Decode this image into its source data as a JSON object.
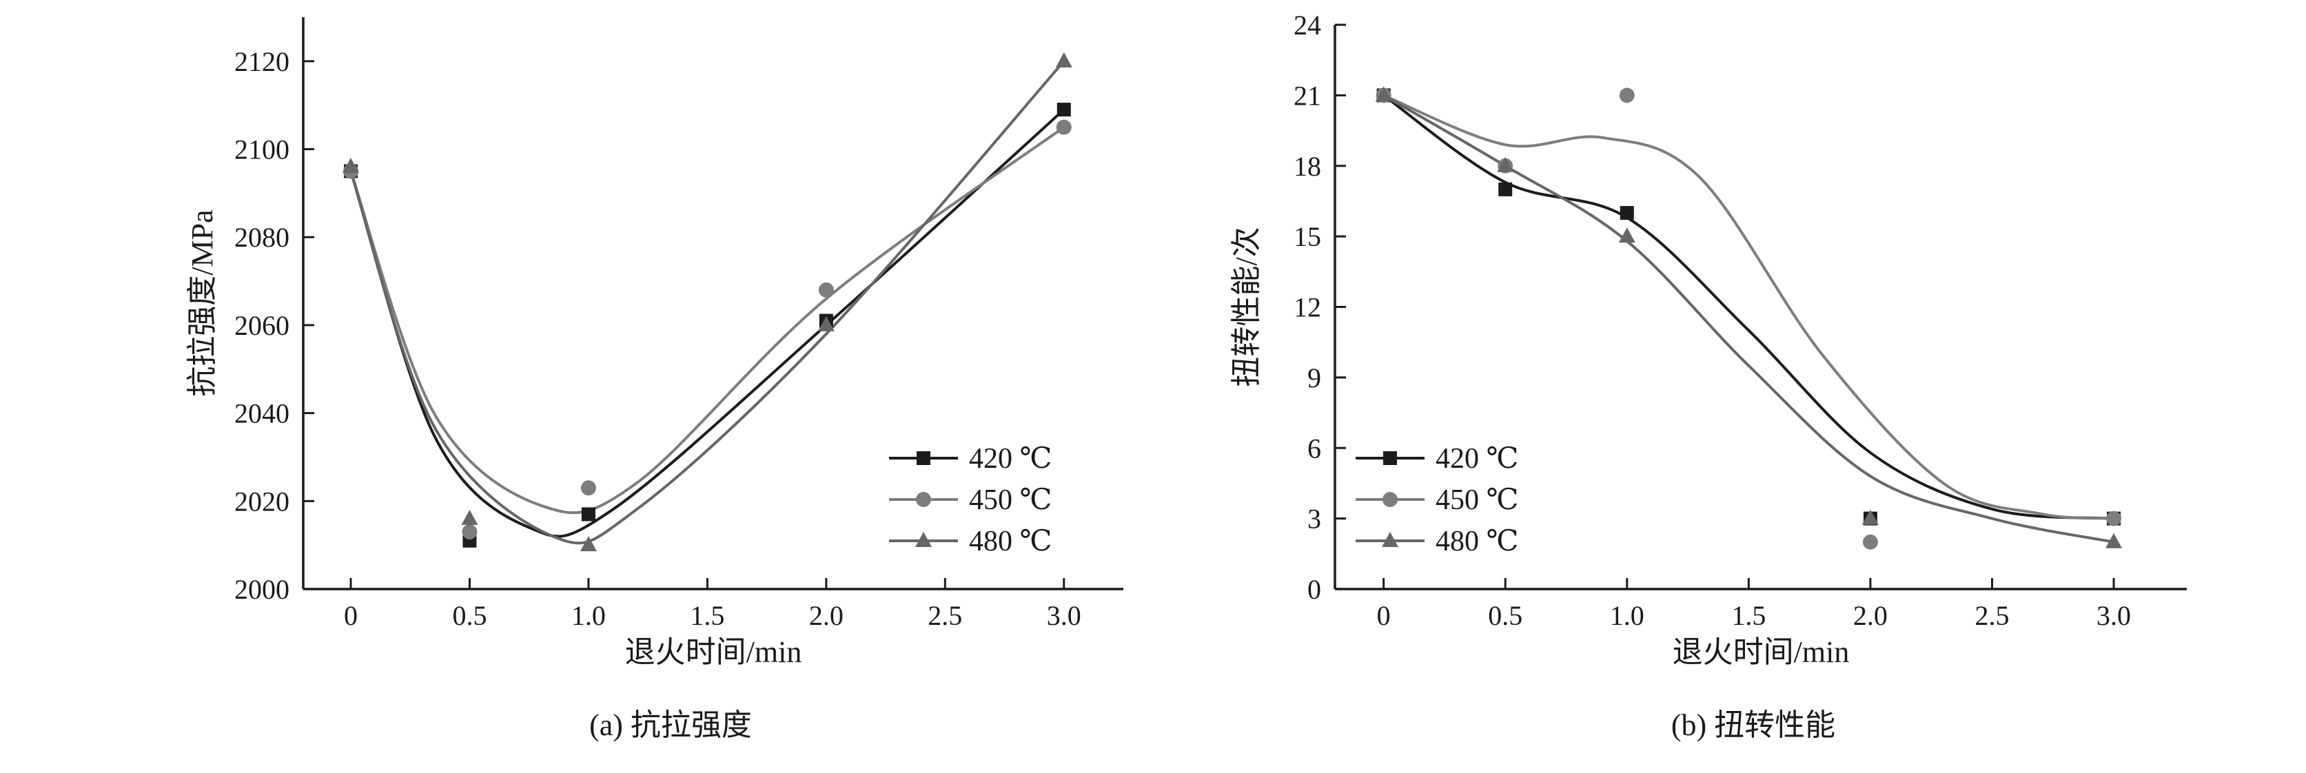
{
  "page": {
    "background": "#ffffff",
    "text_color": "#1a1a1a"
  },
  "chart_data": [
    {
      "type": "line",
      "caption": "(a) 抗拉强度",
      "xlabel": "退火时间/min",
      "ylabel": "抗拉强度/MPa",
      "xlim": [
        -0.2,
        3.25
      ],
      "ylim": [
        2000,
        2130
      ],
      "grid": false,
      "legend_position": "bottom-right",
      "x_ticks": [
        {
          "v": 0,
          "label": "0"
        },
        {
          "v": 0.5,
          "label": "0.5"
        },
        {
          "v": 1,
          "label": "1.0"
        },
        {
          "v": 1.5,
          "label": "1.5"
        },
        {
          "v": 2,
          "label": "2.0"
        },
        {
          "v": 2.5,
          "label": "2.5"
        },
        {
          "v": 3,
          "label": "3.0"
        }
      ],
      "y_ticks": [
        {
          "v": 2000,
          "label": "2000"
        },
        {
          "v": 2020,
          "label": "2020"
        },
        {
          "v": 2040,
          "label": "2040"
        },
        {
          "v": 2060,
          "label": "2060"
        },
        {
          "v": 2080,
          "label": "2080"
        },
        {
          "v": 2100,
          "label": "2100"
        },
        {
          "v": 2120,
          "label": "2120"
        }
      ],
      "series": [
        {
          "name": "420 ℃",
          "marker": "square",
          "color": "#1c1c1c",
          "points": [
            [
              0,
              2095
            ],
            [
              0.5,
              2011
            ],
            [
              1,
              2017
            ],
            [
              2,
              2061
            ],
            [
              3,
              2109
            ]
          ],
          "curve": [
            [
              0,
              2095
            ],
            [
              0.35,
              2035
            ],
            [
              0.75,
              2014
            ],
            [
              1.1,
              2018
            ],
            [
              2,
              2060
            ],
            [
              3,
              2109
            ]
          ]
        },
        {
          "name": "450 ℃",
          "marker": "circle",
          "color": "#7d7d7d",
          "points": [
            [
              0,
              2095
            ],
            [
              0.5,
              2013
            ],
            [
              1,
              2023
            ],
            [
              2,
              2068
            ],
            [
              3,
              2105
            ]
          ],
          "curve": [
            [
              0,
              2095
            ],
            [
              0.35,
              2040
            ],
            [
              0.8,
              2019
            ],
            [
              1.2,
              2024
            ],
            [
              2,
              2066
            ],
            [
              3,
              2105
            ]
          ]
        },
        {
          "name": "480 ℃",
          "marker": "triangle",
          "color": "#666666",
          "points": [
            [
              0,
              2096
            ],
            [
              0.5,
              2016
            ],
            [
              1,
              2010
            ],
            [
              2,
              2060
            ],
            [
              3,
              2120
            ]
          ],
          "curve": [
            [
              0,
              2095
            ],
            [
              0.35,
              2037
            ],
            [
              0.85,
              2012
            ],
            [
              1.2,
              2018
            ],
            [
              2,
              2058
            ],
            [
              3,
              2120
            ]
          ]
        }
      ]
    },
    {
      "type": "line",
      "caption": "(b) 扭转性能",
      "xlabel": "退火时间/min",
      "ylabel": "扭转性能/次",
      "xlim": [
        -0.2,
        3.3
      ],
      "ylim": [
        0,
        24
      ],
      "grid": false,
      "legend_position": "middle-left",
      "x_ticks": [
        {
          "v": 0,
          "label": "0"
        },
        {
          "v": 0.5,
          "label": "0.5"
        },
        {
          "v": 1,
          "label": "1.0"
        },
        {
          "v": 1.5,
          "label": "1.5"
        },
        {
          "v": 2,
          "label": "2.0"
        },
        {
          "v": 2.5,
          "label": "2.5"
        },
        {
          "v": 3,
          "label": "3.0"
        }
      ],
      "y_ticks": [
        {
          "v": 0,
          "label": "0"
        },
        {
          "v": 3,
          "label": "3"
        },
        {
          "v": 6,
          "label": "6"
        },
        {
          "v": 9,
          "label": "9"
        },
        {
          "v": 12,
          "label": "12"
        },
        {
          "v": 15,
          "label": "15"
        },
        {
          "v": 18,
          "label": "18"
        },
        {
          "v": 21,
          "label": "21"
        },
        {
          "v": 24,
          "label": "24"
        }
      ],
      "series": [
        {
          "name": "420 ℃",
          "marker": "square",
          "color": "#1c1c1c",
          "points": [
            [
              0,
              21
            ],
            [
              0.5,
              17
            ],
            [
              1,
              16
            ],
            [
              2,
              3
            ],
            [
              3,
              3
            ]
          ],
          "curve": [
            [
              0,
              21
            ],
            [
              0.5,
              17.3
            ],
            [
              1,
              15.8
            ],
            [
              1.5,
              11
            ],
            [
              2,
              5.8
            ],
            [
              2.5,
              3.4
            ],
            [
              3,
              3
            ]
          ]
        },
        {
          "name": "450 ℃",
          "marker": "circle",
          "color": "#7d7d7d",
          "points": [
            [
              0,
              21
            ],
            [
              0.5,
              18
            ],
            [
              1,
              21
            ],
            [
              2,
              2
            ],
            [
              3,
              3
            ]
          ],
          "curve": [
            [
              0,
              21
            ],
            [
              0.5,
              18.9
            ],
            [
              0.9,
              19.2
            ],
            [
              1.3,
              17.5
            ],
            [
              1.8,
              10
            ],
            [
              2.3,
              4.5
            ],
            [
              2.7,
              3.2
            ],
            [
              3,
              3
            ]
          ]
        },
        {
          "name": "480 ℃",
          "marker": "triangle",
          "color": "#666666",
          "points": [
            [
              0,
              21
            ],
            [
              0.5,
              18
            ],
            [
              1,
              15
            ],
            [
              2,
              3
            ],
            [
              3,
              2
            ]
          ],
          "curve": [
            [
              0,
              21
            ],
            [
              0.5,
              18
            ],
            [
              1,
              14.8
            ],
            [
              1.5,
              9.5
            ],
            [
              2,
              4.8
            ],
            [
              2.5,
              3
            ],
            [
              3,
              2
            ]
          ]
        }
      ]
    }
  ]
}
